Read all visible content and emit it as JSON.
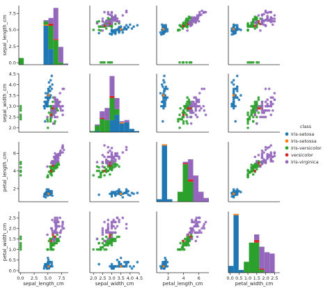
{
  "chart_data": {
    "type": "scatter",
    "variables": [
      "sepal_length_cm",
      "sepal_width_cm",
      "petal_length_cm",
      "petal_width_cm"
    ],
    "axis_labels": [
      "sepal_length_cm",
      "sepal_width_cm",
      "petal_length_cm",
      "petal_width_cm"
    ],
    "ranges": [
      [
        -0.3,
        8.7
      ],
      [
        1.8,
        4.5
      ],
      [
        0.5,
        7.3
      ],
      [
        -0.1,
        2.8
      ]
    ],
    "ticks": [
      [
        0,
        2.5,
        5.0,
        7.5
      ],
      [
        2.0,
        2.5,
        3.0,
        3.5,
        4.0,
        4.5
      ],
      [
        2,
        4,
        6
      ],
      [
        0.0,
        0.5,
        1.0,
        1.5,
        2.0,
        2.5
      ]
    ],
    "tick_labels": [
      [
        "0.0",
        "2.5",
        "5.0",
        "7.5"
      ],
      [
        "2.0",
        "2.5",
        "3.0",
        "3.5",
        "4.0",
        "4.5"
      ],
      [
        "2",
        "4",
        "6"
      ],
      [
        "0.0",
        "0.5",
        "1.0",
        "1.5",
        "2.0",
        "2.5"
      ]
    ],
    "diagonal": "histogram",
    "legend": {
      "title": "class",
      "position": "right",
      "entries": [
        "Iris-setosa",
        "Iris-setossa",
        "Iris-versicolor",
        "versicolor",
        "Iris-virginica"
      ]
    },
    "series": [
      {
        "name": "Iris-setosa",
        "color": "#1f77b4",
        "points": [
          [
            5.1,
            3.5,
            1.4,
            0.2
          ],
          [
            4.9,
            3.0,
            1.4,
            0.2
          ],
          [
            4.7,
            3.2,
            1.3,
            0.2
          ],
          [
            4.6,
            3.1,
            1.5,
            0.2
          ],
          [
            5.0,
            3.6,
            1.4,
            0.2
          ],
          [
            5.4,
            3.9,
            1.7,
            0.4
          ],
          [
            4.6,
            3.4,
            1.4,
            0.3
          ],
          [
            5.0,
            3.4,
            1.5,
            0.2
          ],
          [
            4.4,
            2.9,
            1.4,
            0.2
          ],
          [
            4.9,
            3.1,
            1.5,
            0.1
          ],
          [
            5.4,
            3.7,
            1.5,
            0.2
          ],
          [
            4.8,
            3.4,
            1.6,
            0.2
          ],
          [
            4.8,
            3.0,
            1.4,
            0.1
          ],
          [
            4.3,
            3.0,
            1.1,
            0.1
          ],
          [
            5.8,
            4.0,
            1.2,
            0.2
          ],
          [
            5.7,
            4.4,
            1.5,
            0.4
          ],
          [
            5.4,
            3.9,
            1.3,
            0.4
          ],
          [
            5.1,
            3.5,
            1.4,
            0.3
          ],
          [
            5.7,
            3.8,
            1.7,
            0.3
          ],
          [
            5.1,
            3.8,
            1.5,
            0.3
          ],
          [
            5.4,
            3.4,
            1.7,
            0.2
          ],
          [
            5.1,
            3.7,
            1.5,
            0.4
          ],
          [
            4.6,
            3.6,
            1.0,
            0.2
          ],
          [
            5.1,
            3.3,
            1.7,
            0.5
          ],
          [
            4.8,
            3.4,
            1.9,
            0.2
          ],
          [
            5.0,
            3.0,
            1.6,
            0.2
          ],
          [
            5.0,
            3.4,
            1.6,
            0.4
          ],
          [
            5.2,
            3.5,
            1.5,
            0.2
          ],
          [
            5.2,
            3.4,
            1.4,
            0.2
          ],
          [
            4.7,
            3.2,
            1.6,
            0.2
          ],
          [
            4.8,
            3.1,
            1.6,
            0.2
          ],
          [
            5.4,
            3.4,
            1.5,
            0.4
          ],
          [
            5.2,
            4.1,
            1.5,
            0.1
          ],
          [
            5.5,
            4.2,
            1.4,
            0.2
          ],
          [
            4.9,
            3.1,
            1.5,
            0.1
          ],
          [
            5.0,
            3.2,
            1.2,
            0.2
          ],
          [
            5.5,
            3.5,
            1.3,
            0.2
          ],
          [
            4.4,
            3.0,
            1.3,
            0.2
          ],
          [
            5.1,
            3.4,
            1.5,
            0.2
          ],
          [
            5.0,
            3.5,
            1.3,
            0.3
          ],
          [
            4.5,
            2.3,
            1.3,
            0.3
          ],
          [
            4.4,
            3.2,
            1.3,
            0.2
          ],
          [
            5.0,
            3.5,
            1.6,
            0.6
          ],
          [
            5.1,
            3.8,
            1.9,
            0.4
          ],
          [
            4.8,
            3.0,
            1.4,
            0.3
          ],
          [
            5.1,
            3.8,
            1.6,
            0.2
          ],
          [
            4.6,
            3.2,
            1.4,
            0.2
          ],
          [
            5.3,
            3.7,
            1.5,
            0.2
          ],
          [
            5.0,
            3.3,
            1.4,
            0.2
          ]
        ]
      },
      {
        "name": "Iris-setossa",
        "color": "#ff7f0e",
        "points": [
          [
            5.1,
            3.5,
            1.4,
            0.2
          ]
        ]
      },
      {
        "name": "Iris-versicolor",
        "color": "#2ca02c",
        "points": [
          [
            7.0,
            3.2,
            4.7,
            1.4
          ],
          [
            6.4,
            3.2,
            4.5,
            1.5
          ],
          [
            6.9,
            3.1,
            4.9,
            1.5
          ],
          [
            5.5,
            2.3,
            4.0,
            1.3
          ],
          [
            6.5,
            2.8,
            4.6,
            1.5
          ],
          [
            5.7,
            2.8,
            4.5,
            1.3
          ],
          [
            6.3,
            3.3,
            4.7,
            1.6
          ],
          [
            4.9,
            2.4,
            3.3,
            1.0
          ],
          [
            6.6,
            2.9,
            4.6,
            1.3
          ],
          [
            5.2,
            2.7,
            3.9,
            1.4
          ],
          [
            5.0,
            2.0,
            3.5,
            1.0
          ],
          [
            5.9,
            3.0,
            4.2,
            1.5
          ],
          [
            6.0,
            2.2,
            4.0,
            1.0
          ],
          [
            6.1,
            2.9,
            4.7,
            1.4
          ],
          [
            5.6,
            2.9,
            3.6,
            1.3
          ],
          [
            6.7,
            3.1,
            4.4,
            1.4
          ],
          [
            5.6,
            3.0,
            4.5,
            1.5
          ],
          [
            5.8,
            2.7,
            4.1,
            1.0
          ],
          [
            6.2,
            2.2,
            4.5,
            1.5
          ],
          [
            5.6,
            2.5,
            3.9,
            1.1
          ],
          [
            5.9,
            3.2,
            4.8,
            1.8
          ],
          [
            6.1,
            2.8,
            4.0,
            1.3
          ],
          [
            6.3,
            2.5,
            4.9,
            1.5
          ],
          [
            6.1,
            2.8,
            4.7,
            1.2
          ],
          [
            6.4,
            2.9,
            4.3,
            1.3
          ],
          [
            6.6,
            3.0,
            4.4,
            1.4
          ],
          [
            6.8,
            2.8,
            4.8,
            1.4
          ],
          [
            6.7,
            3.0,
            5.0,
            1.7
          ],
          [
            6.0,
            2.9,
            4.5,
            1.5
          ],
          [
            5.7,
            2.6,
            3.5,
            1.0
          ],
          [
            5.5,
            2.4,
            3.8,
            1.1
          ],
          [
            5.5,
            2.4,
            3.7,
            1.0
          ],
          [
            5.8,
            2.7,
            3.9,
            1.2
          ],
          [
            6.0,
            2.7,
            5.1,
            1.6
          ],
          [
            5.4,
            3.0,
            4.5,
            1.5
          ],
          [
            6.0,
            3.4,
            4.5,
            1.6
          ],
          [
            6.7,
            3.1,
            4.7,
            1.5
          ],
          [
            6.3,
            2.3,
            4.4,
            1.3
          ],
          [
            5.6,
            3.0,
            4.1,
            1.3
          ],
          [
            5.5,
            2.5,
            4.0,
            1.3
          ],
          [
            5.5,
            2.6,
            4.4,
            1.2
          ],
          [
            6.1,
            3.0,
            4.6,
            1.4
          ],
          [
            5.8,
            2.6,
            4.0,
            1.2
          ],
          [
            5.0,
            2.3,
            3.3,
            1.0
          ],
          [
            5.6,
            2.7,
            4.2,
            1.3
          ],
          [
            5.7,
            3.0,
            4.2,
            1.2
          ],
          [
            5.7,
            2.9,
            4.2,
            1.3
          ],
          [
            6.2,
            2.9,
            4.3,
            1.3
          ],
          [
            0.05,
            2.4,
            3.5,
            1.0
          ],
          [
            0.05,
            2.8,
            4.0,
            1.3
          ],
          [
            0.05,
            3.0,
            4.8,
            1.5
          ],
          [
            0.05,
            2.6,
            4.4,
            1.2
          ],
          [
            0.05,
            2.9,
            5.0,
            1.6
          ],
          [
            0.05,
            2.5,
            3.9,
            1.1
          ]
        ]
      },
      {
        "name": "versicolor",
        "color": "#d62728",
        "points": [
          [
            5.6,
            2.6,
            4.0,
            1.4
          ],
          [
            5.9,
            2.9,
            4.6,
            1.7
          ],
          [
            6.3,
            2.9,
            4.9,
            1.6
          ]
        ]
      },
      {
        "name": "Iris-virginica",
        "color": "#9467bd",
        "points": [
          [
            6.3,
            3.3,
            6.0,
            2.5
          ],
          [
            5.8,
            2.7,
            5.1,
            1.9
          ],
          [
            7.1,
            3.0,
            5.9,
            2.1
          ],
          [
            6.3,
            2.9,
            5.6,
            1.8
          ],
          [
            6.5,
            3.0,
            5.8,
            2.2
          ],
          [
            7.6,
            3.0,
            6.6,
            2.1
          ],
          [
            4.9,
            2.5,
            4.5,
            1.7
          ],
          [
            7.3,
            2.9,
            6.3,
            1.8
          ],
          [
            6.7,
            2.5,
            5.8,
            1.8
          ],
          [
            7.2,
            3.6,
            6.1,
            2.5
          ],
          [
            6.5,
            3.2,
            5.1,
            2.0
          ],
          [
            6.4,
            2.7,
            5.3,
            1.9
          ],
          [
            6.8,
            3.0,
            5.5,
            2.1
          ],
          [
            5.7,
            2.5,
            5.0,
            2.0
          ],
          [
            5.8,
            2.8,
            5.1,
            2.4
          ],
          [
            6.4,
            3.2,
            5.3,
            2.3
          ],
          [
            6.5,
            3.0,
            5.5,
            1.8
          ],
          [
            7.7,
            3.8,
            6.7,
            2.2
          ],
          [
            7.7,
            2.6,
            6.9,
            2.3
          ],
          [
            6.0,
            2.2,
            5.0,
            1.5
          ],
          [
            6.9,
            3.2,
            5.7,
            2.3
          ],
          [
            5.6,
            2.8,
            4.9,
            2.0
          ],
          [
            7.7,
            2.8,
            6.7,
            2.0
          ],
          [
            6.3,
            2.7,
            4.9,
            1.8
          ],
          [
            6.7,
            3.3,
            5.7,
            2.1
          ],
          [
            7.2,
            3.2,
            6.0,
            1.8
          ],
          [
            6.2,
            2.8,
            4.8,
            1.8
          ],
          [
            6.1,
            3.0,
            4.9,
            1.8
          ],
          [
            6.4,
            2.8,
            5.6,
            2.1
          ],
          [
            7.2,
            3.0,
            5.8,
            1.6
          ],
          [
            7.4,
            2.8,
            6.1,
            1.9
          ],
          [
            7.9,
            3.8,
            6.4,
            2.0
          ],
          [
            6.4,
            2.8,
            5.6,
            2.2
          ],
          [
            6.3,
            2.8,
            5.1,
            1.5
          ],
          [
            6.1,
            2.6,
            5.6,
            1.4
          ],
          [
            7.7,
            3.0,
            6.1,
            2.3
          ],
          [
            6.3,
            3.4,
            5.6,
            2.4
          ],
          [
            6.4,
            3.1,
            5.5,
            1.8
          ],
          [
            6.0,
            3.0,
            4.8,
            1.8
          ],
          [
            6.9,
            3.1,
            5.4,
            2.1
          ],
          [
            6.7,
            3.1,
            5.6,
            2.4
          ],
          [
            6.9,
            3.1,
            5.1,
            2.3
          ],
          [
            6.8,
            3.2,
            5.9,
            2.3
          ],
          [
            6.7,
            3.3,
            5.7,
            2.5
          ],
          [
            6.7,
            3.0,
            5.2,
            2.3
          ],
          [
            6.3,
            2.5,
            5.0,
            1.9
          ],
          [
            6.5,
            3.0,
            5.2,
            2.0
          ],
          [
            6.2,
            3.4,
            5.4,
            2.3
          ],
          [
            5.9,
            3.0,
            5.1,
            1.8
          ]
        ]
      }
    ]
  }
}
